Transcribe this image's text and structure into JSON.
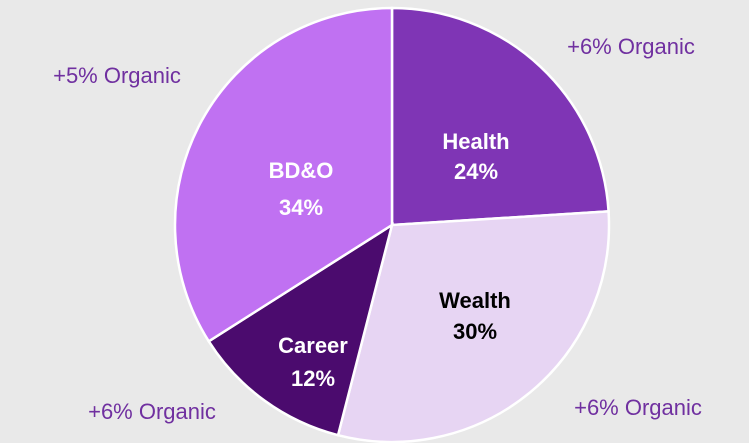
{
  "chart_data": {
    "type": "pie",
    "categories": [
      "Health",
      "Wealth",
      "Career",
      "BD&O"
    ],
    "values": [
      24,
      30,
      12,
      34
    ],
    "value_labels": [
      "24%",
      "30%",
      "12%",
      "34%"
    ],
    "colors": [
      "#7f35b5",
      "#e7d5f3",
      "#4b0b6e",
      "#c071f2"
    ],
    "label_colors": [
      "#ffffff",
      "#000000",
      "#ffffff",
      "#ffffff"
    ],
    "annotations": [
      "+6% Organic",
      "+5% Organic",
      "+6% Organic",
      "+6% Organic"
    ]
  }
}
